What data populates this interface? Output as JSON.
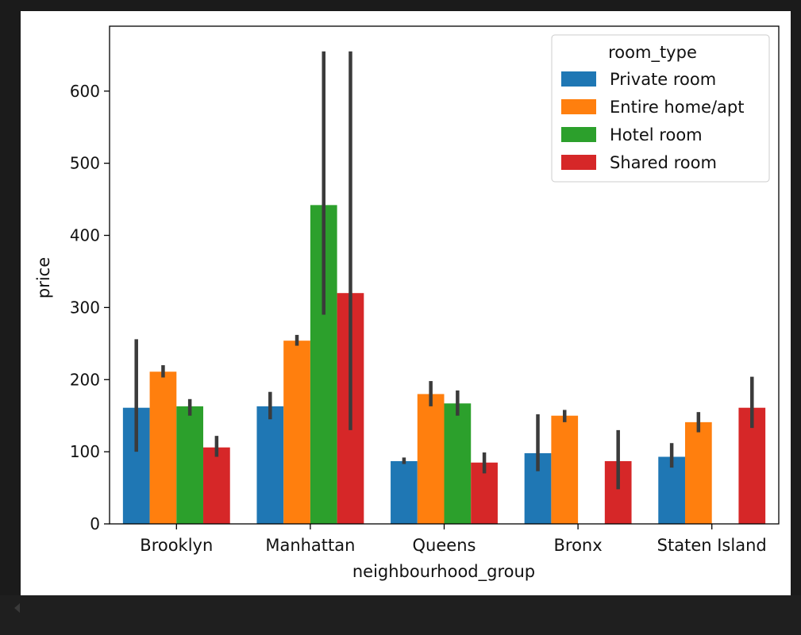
{
  "chart_data": {
    "type": "bar",
    "xlabel": "neighbourhood_group",
    "ylabel": "price",
    "ylim": [
      0,
      690
    ],
    "yticks": [
      0,
      100,
      200,
      300,
      400,
      500,
      600
    ],
    "categories": [
      "Brooklyn",
      "Manhattan",
      "Queens",
      "Bronx",
      "Staten Island"
    ],
    "legend": {
      "title": "room_type",
      "placement": "top-right"
    },
    "grid": false,
    "series": [
      {
        "name": "Private room",
        "color": "#1f77b4",
        "values": [
          161,
          163,
          87,
          98,
          93
        ],
        "ci_low": [
          100,
          145,
          83,
          73,
          78
        ],
        "ci_high": [
          256,
          183,
          92,
          152,
          112
        ]
      },
      {
        "name": "Entire home/apt",
        "color": "#ff7f0e",
        "values": [
          211,
          254,
          180,
          150,
          141
        ],
        "ci_low": [
          203,
          247,
          163,
          141,
          127
        ],
        "ci_high": [
          220,
          262,
          198,
          158,
          155
        ]
      },
      {
        "name": "Hotel room",
        "color": "#2ca02c",
        "values": [
          163,
          442,
          167,
          null,
          null
        ],
        "ci_low": [
          150,
          290,
          150,
          null,
          null
        ],
        "ci_high": [
          173,
          655,
          185,
          null,
          null
        ]
      },
      {
        "name": "Shared room",
        "color": "#d62728",
        "values": [
          106,
          320,
          85,
          87,
          161
        ],
        "ci_low": [
          93,
          130,
          70,
          48,
          133
        ],
        "ci_high": [
          122,
          655,
          99,
          130,
          204
        ]
      }
    ],
    "error_bar_color": "#3b3b3b"
  }
}
